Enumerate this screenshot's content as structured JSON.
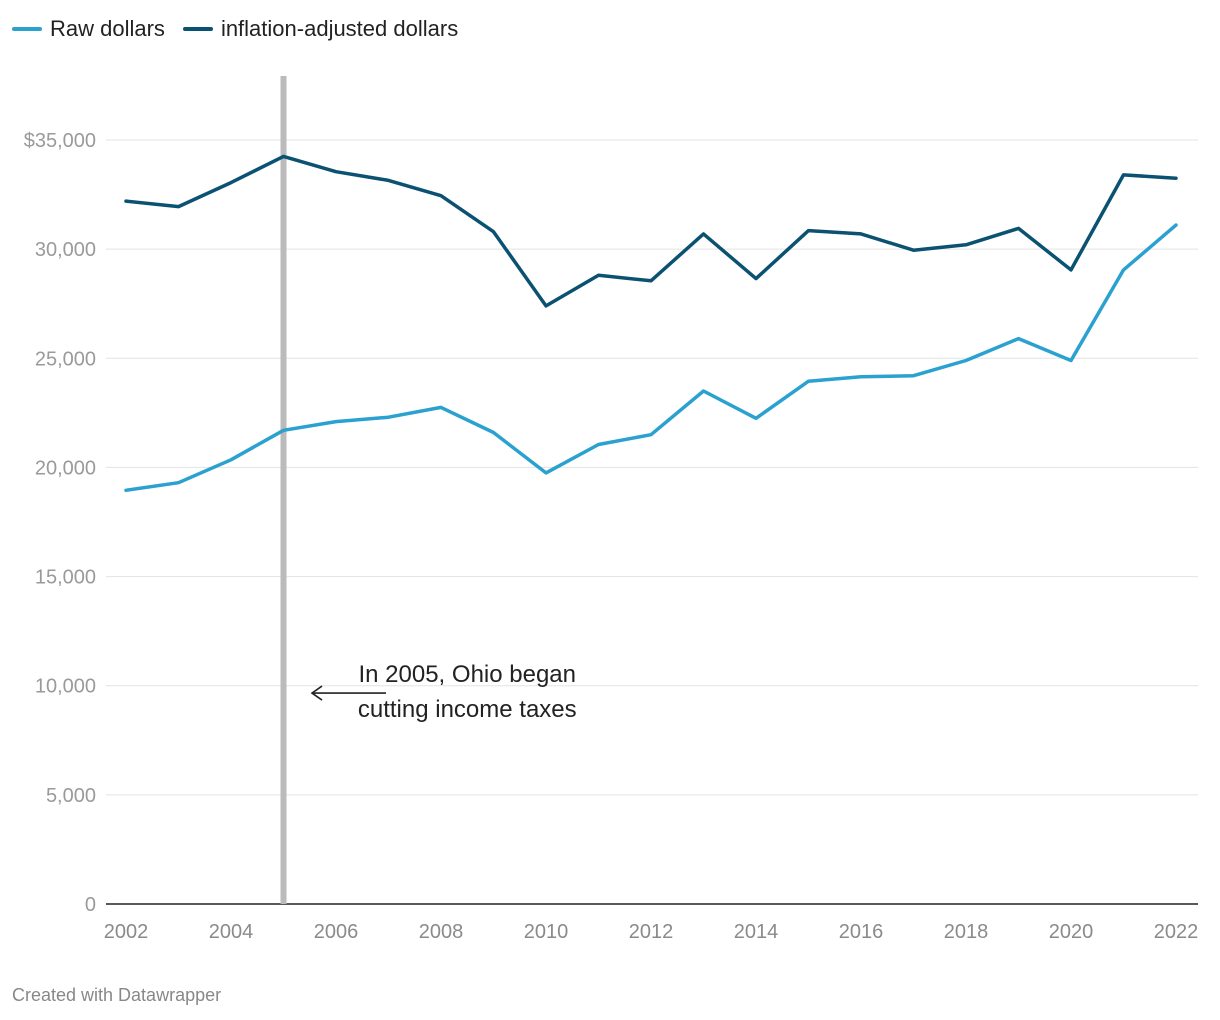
{
  "chart_data": {
    "type": "line",
    "x": [
      2002,
      2003,
      2004,
      2005,
      2006,
      2007,
      2008,
      2009,
      2010,
      2011,
      2012,
      2013,
      2014,
      2015,
      2016,
      2017,
      2018,
      2019,
      2020,
      2021,
      2022
    ],
    "series": [
      {
        "name": "Raw dollars",
        "color": "#2aa1cf",
        "values": [
          18950,
          19300,
          20350,
          21700,
          22100,
          22300,
          22750,
          21600,
          19750,
          21050,
          21500,
          23500,
          22250,
          23950,
          24150,
          24200,
          24900,
          25900,
          24900,
          29050,
          31100
        ]
      },
      {
        "name": "inflation-adjusted dollars",
        "color": "#0b5272",
        "values": [
          32200,
          31950,
          33050,
          34250,
          33550,
          33150,
          32450,
          30800,
          27400,
          28800,
          28550,
          30700,
          28650,
          30850,
          30700,
          29950,
          30200,
          30950,
          29050,
          33400,
          33250
        ]
      }
    ],
    "ylim": [
      0,
      35000
    ],
    "yticks": [
      0,
      5000,
      10000,
      15000,
      20000,
      25000,
      30000,
      35000
    ],
    "ytick_labels": [
      "0",
      "5,000",
      "10,000",
      "15,000",
      "20,000",
      "25,000",
      "30,000",
      "$35,000"
    ],
    "xticks": [
      2002,
      2004,
      2006,
      2008,
      2010,
      2012,
      2014,
      2016,
      2018,
      2020,
      2022
    ],
    "xtick_labels": [
      "2002",
      "2004",
      "2006",
      "2008",
      "2010",
      "2012",
      "2014",
      "2016",
      "2018",
      "2020",
      "2022"
    ],
    "marker_line": {
      "x": 2005,
      "color": "#bbbbbb"
    },
    "annotation": {
      "lines": [
        "In 2005, Ohio began",
        "cutting income taxes"
      ],
      "x": 2008.5,
      "y": 9800
    },
    "legend_position": "top-left",
    "grid": true
  },
  "footer": {
    "credit": "Created with Datawrapper"
  }
}
